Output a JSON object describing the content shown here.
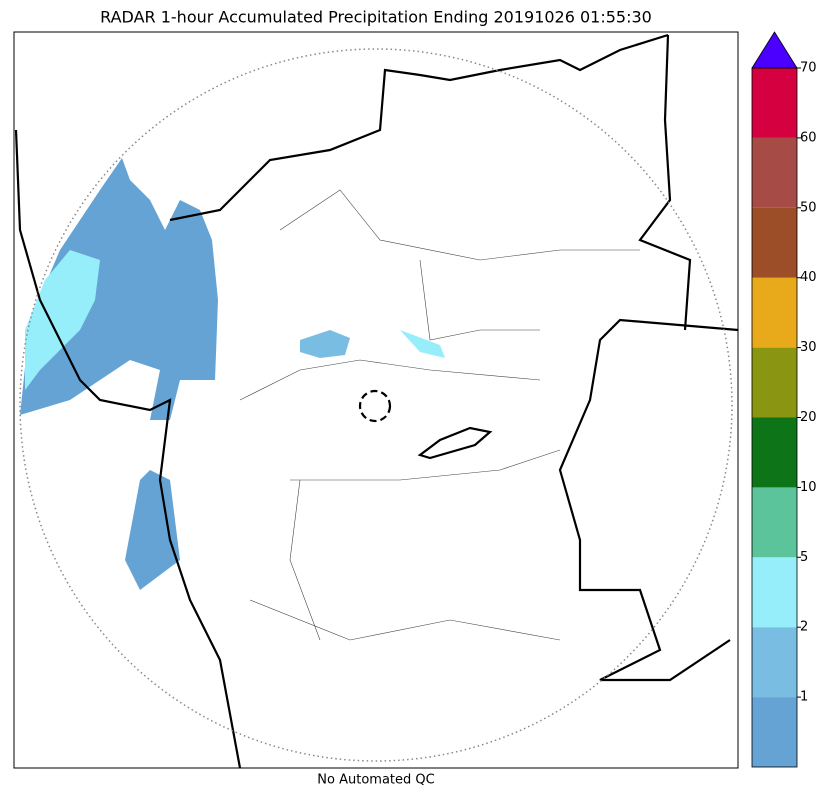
{
  "title": "RADAR 1-hour Accumulated Precipitation Ending 20191026 01:55:30",
  "caption": "No Automated QC",
  "colorbar": {
    "ticks": [
      1,
      2,
      5,
      10,
      20,
      30,
      40,
      50,
      60,
      70
    ],
    "colors": [
      "#65a3d4",
      "#79bde3",
      "#96eefb",
      "#5cc49a",
      "#0e7418",
      "#8a9512",
      "#e8a91b",
      "#9b4e27",
      "#a64b45",
      "#d4003f",
      "#4b00ff"
    ],
    "extend": "max"
  }
}
